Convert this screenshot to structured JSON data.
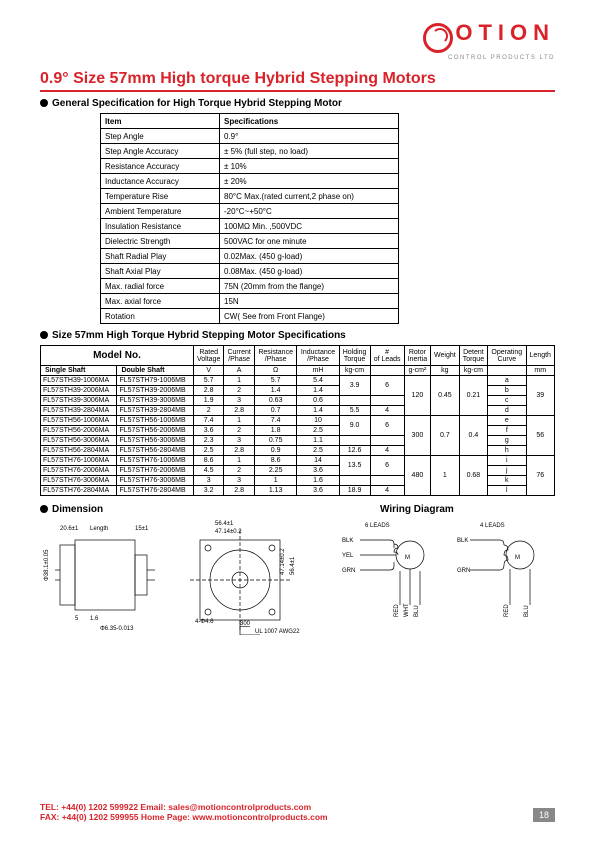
{
  "logo": {
    "text": "OTION",
    "sub": "CONTROL PRODUCTS LTD"
  },
  "title": "0.9° Size 57mm High torque Hybrid Stepping Motors",
  "section1_title": "General Specification for High Torque Hybrid Stepping Motor",
  "spec_header": {
    "c1": "Item",
    "c2": "Specifications"
  },
  "specs": [
    {
      "k": "Step Angle",
      "v": "0.9°"
    },
    {
      "k": "Step Angle Accuracy",
      "v": "± 5% (full step, no load)"
    },
    {
      "k": "Resistance Accuracy",
      "v": "± 10%"
    },
    {
      "k": "Inductance Accuracy",
      "v": "± 20%"
    },
    {
      "k": "Temperature Rise",
      "v": "80°C Max.(rated current,2 phase on)"
    },
    {
      "k": "Ambient Temperature",
      "v": "-20°C~+50°C"
    },
    {
      "k": "Insulation Resistance",
      "v": "100MΩ Min. ,500VDC"
    },
    {
      "k": "Dielectric Strength",
      "v": "500VAC for one minute"
    },
    {
      "k": "Shaft Radial Play",
      "v": "0.02Max. (450 g-load)"
    },
    {
      "k": "Shaft Axial Play",
      "v": "0.08Max. (450 g-load)"
    },
    {
      "k": "Max. radial force",
      "v": "75N  (20mm from the flange)"
    },
    {
      "k": "Max. axial force",
      "v": "15N"
    },
    {
      "k": "Rotation",
      "v": "CW( See from Front Flange)"
    }
  ],
  "section2_title": "Size 57mm High Torque Hybrid Stepping Motor Specifications",
  "mt": {
    "model_no": "Model No.",
    "headers": [
      "Rated Voltage",
      "Current /Phase",
      "Resistance /Phase",
      "Inductance /Phase",
      "Holding Torque",
      "# of Leads",
      "Rotor Inertia",
      "Weight",
      "Detent Torque",
      "Operating Curve",
      "Length"
    ],
    "units": [
      "V",
      "A",
      "Ω",
      "mH",
      "kg-cm",
      "",
      "g-cm²",
      "kg",
      "kg-cm",
      "",
      "mm"
    ],
    "shaft1": "Single Shaft",
    "shaft2": "Double Shaft",
    "rows": [
      {
        "s": "FL57STH39-1006MA",
        "d": "FL57STH79-1006MB",
        "v": [
          "5.7",
          "1",
          "5.7",
          "5.4"
        ],
        "ht": "",
        "lead": "",
        "ri": "",
        "w": "",
        "dt": "",
        "oc": "a",
        "len": ""
      },
      {
        "s": "FL57STH39-2006MA",
        "d": "FL57STH39-2006MB",
        "v": [
          "2.8",
          "2",
          "1.4",
          "1.4"
        ],
        "ht": "3.9",
        "lead": "6",
        "ri": "",
        "w": "",
        "dt": "",
        "oc": "b",
        "len": ""
      },
      {
        "s": "FL57STH39-3006MA",
        "d": "FL57STH39-3006MB",
        "v": [
          "1.9",
          "3",
          "0.63",
          "0.6"
        ],
        "ht": "",
        "lead": "",
        "ri": "120",
        "w": "0.45",
        "dt": "0.21",
        "oc": "c",
        "len": "39"
      },
      {
        "s": "FL57STH39-2804MA",
        "d": "FL57STH39-2804MB",
        "v": [
          "2",
          "2.8",
          "0.7",
          "1.4"
        ],
        "ht": "5.5",
        "lead": "4",
        "ri": "",
        "w": "",
        "dt": "",
        "oc": "d",
        "len": ""
      },
      {
        "s": "FL57STH56-1006MA",
        "d": "FL57STH56-1006MB",
        "v": [
          "7.4",
          "1",
          "7.4",
          "10"
        ],
        "ht": "",
        "lead": "",
        "ri": "",
        "w": "",
        "dt": "",
        "oc": "e",
        "len": ""
      },
      {
        "s": "FL57STH56-2006MA",
        "d": "FL57STH56-2006MB",
        "v": [
          "3.6",
          "2",
          "1.8",
          "2.5"
        ],
        "ht": "9.0",
        "lead": "6",
        "ri": "",
        "w": "",
        "dt": "",
        "oc": "f",
        "len": ""
      },
      {
        "s": "FL57STH56-3006MA",
        "d": "FL57STH56-3006MB",
        "v": [
          "2.3",
          "3",
          "0.75",
          "1.1"
        ],
        "ht": "",
        "lead": "",
        "ri": "300",
        "w": "0.7",
        "dt": "0.4",
        "oc": "g",
        "len": "56"
      },
      {
        "s": "FL57STH56-2804MA",
        "d": "FL57STH56-2804MB",
        "v": [
          "2.5",
          "2.8",
          "0.9",
          "2.5"
        ],
        "ht": "12.6",
        "lead": "4",
        "ri": "",
        "w": "",
        "dt": "",
        "oc": "h",
        "len": ""
      },
      {
        "s": "FL57STH76-1006MA",
        "d": "FL57STH76-1006MB",
        "v": [
          "8.6",
          "1",
          "8.6",
          "14"
        ],
        "ht": "",
        "lead": "",
        "ri": "",
        "w": "",
        "dt": "",
        "oc": "i",
        "len": ""
      },
      {
        "s": "FL57STH76-2006MA",
        "d": "FL57STH76-2006MB",
        "v": [
          "4.5",
          "2",
          "2.25",
          "3.6"
        ],
        "ht": "13.5",
        "lead": "6",
        "ri": "",
        "w": "",
        "dt": "",
        "oc": "j",
        "len": ""
      },
      {
        "s": "FL57STH76-3006MA",
        "d": "FL57STH76-3006MB",
        "v": [
          "3",
          "3",
          "1",
          "1.6"
        ],
        "ht": "",
        "lead": "",
        "ri": "480",
        "w": "1",
        "dt": "0.68",
        "oc": "k",
        "len": "76"
      },
      {
        "s": "FL57STH76-2804MA",
        "d": "FL57STH76-2804MB",
        "v": [
          "3.2",
          "2.8",
          "1.13",
          "3.6"
        ],
        "ht": "18.9",
        "lead": "4",
        "ri": "",
        "w": "",
        "dt": "",
        "oc": "l",
        "len": ""
      }
    ]
  },
  "dim_title": "Dimension",
  "wiring_title": "Wiring Diagram",
  "wiring": {
    "leads6": "6 LEADS",
    "leads4": "4 LEADS",
    "blk": "BLK",
    "yel": "YEL",
    "grn": "GRN",
    "red": "RED",
    "wht": "WHT",
    "blu": "BLU"
  },
  "dim": {
    "d1": "20.6±1",
    "d2": "Length",
    "d3": "15±1",
    "d4": "Φ38.1±0.05",
    "d5": "5",
    "d6": "1.6",
    "d7": "Φ6.35-0.013",
    "d8": "56.4±1",
    "d9": "47.14±0.2",
    "d10": "4-Φ4.6",
    "d11": "47.14±0.2",
    "d12": "56.4±1",
    "d13": "300",
    "d14": "UL 1007 AWG22"
  },
  "footer": {
    "l1": "TEL: +44(0) 1202 599922    Email:  sales@motioncontrolproducts.com",
    "l2": "FAX: +44(0) 1202 599955    Home Page:  www.motioncontrolproducts.com"
  },
  "page_num": "18"
}
